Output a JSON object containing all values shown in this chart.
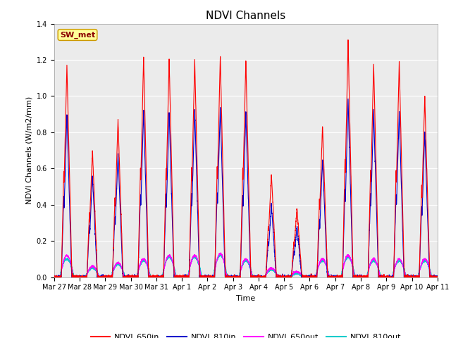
{
  "title": "NDVI Channels",
  "ylabel": "NDVI Channels (W/m2/mm)",
  "xlabel": "Time",
  "annotation": "SW_met",
  "annotation_color": "#8B0000",
  "annotation_bg": "#FFFF99",
  "ylim": [
    0.0,
    1.4
  ],
  "series": {
    "NDVI_650in": {
      "color": "#FF0000",
      "lw": 0.8
    },
    "NDVI_810in": {
      "color": "#0000CC",
      "lw": 0.8
    },
    "NDVI_650out": {
      "color": "#FF00FF",
      "lw": 0.8
    },
    "NDVI_810out": {
      "color": "#00CCCC",
      "lw": 0.8
    }
  },
  "xtick_labels": [
    "Mar 27",
    "Mar 28",
    "Mar 29",
    "Mar 30",
    "Mar 31",
    "Apr 1",
    "Apr 2",
    "Apr 3",
    "Apr 4",
    "Apr 5",
    "Apr 6",
    "Apr 7",
    "Apr 8",
    "Apr 9",
    "Apr 10",
    "Apr 11"
  ],
  "bg_color": "#EBEBEB",
  "grid_color": "#FFFFFF",
  "day_peaks_650in": [
    1.17,
    0.7,
    0.87,
    1.21,
    1.2,
    1.2,
    1.22,
    1.2,
    0.57,
    0.38,
    0.84,
    1.3,
    1.18,
    1.19,
    1.0
  ],
  "day_peaks_810in": [
    0.9,
    0.56,
    0.68,
    0.92,
    0.91,
    0.93,
    0.94,
    0.91,
    0.4,
    0.28,
    0.65,
    0.98,
    0.92,
    0.92,
    0.8
  ],
  "day_peaks_650out": [
    0.12,
    0.06,
    0.08,
    0.1,
    0.12,
    0.12,
    0.13,
    0.1,
    0.05,
    0.03,
    0.1,
    0.12,
    0.1,
    0.1,
    0.1
  ],
  "day_peaks_810out": [
    0.1,
    0.05,
    0.07,
    0.09,
    0.11,
    0.11,
    0.12,
    0.09,
    0.04,
    0.02,
    0.09,
    0.11,
    0.09,
    0.09,
    0.09
  ],
  "title_fontsize": 11,
  "tick_fontsize": 7,
  "ylabel_fontsize": 8,
  "xlabel_fontsize": 8,
  "legend_fontsize": 8,
  "annotation_fontsize": 8
}
